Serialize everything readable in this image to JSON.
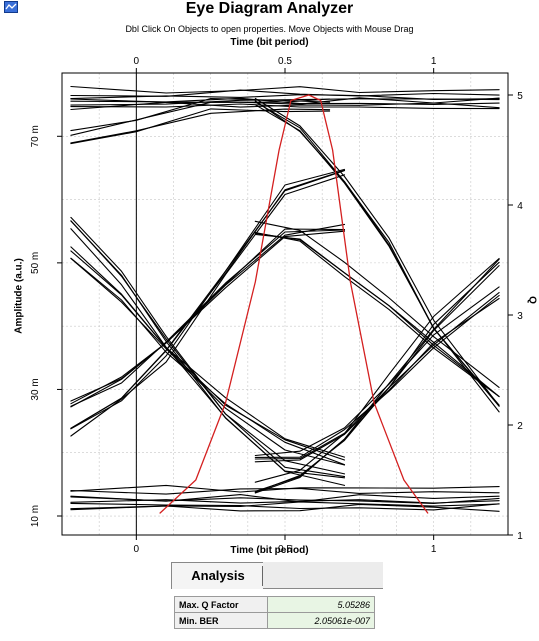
{
  "window": {
    "title": "Eye Diagram Analyzer",
    "hint": "Dbl Click On Objects to open properties.  Move Objects with Mouse Drag"
  },
  "chart_data": {
    "type": "line",
    "title": "Eye Diagram Analyzer",
    "xlabel": "Time (bit period)",
    "ylabel": "Amplitude (a.u.)",
    "y2label": "Q",
    "xlim": [
      -0.25,
      1.25
    ],
    "ylim": [
      7,
      80
    ],
    "y2lim": [
      1,
      5.2
    ],
    "x_ticks": [
      "0",
      "0.5",
      "1"
    ],
    "y_ticks": [
      "10 m",
      "30 m",
      "50 m",
      "70 m"
    ],
    "y2_ticks": [
      "1",
      "2",
      "3",
      "4",
      "5"
    ],
    "grid": true,
    "series": [
      {
        "role": "eye",
        "color": "#000000",
        "x": [
          -0.22,
          0.1,
          0.35,
          0.55,
          0.75,
          1.0,
          1.22
        ],
        "y": [
          76.5,
          76.5,
          76.5,
          76.5,
          76.5,
          76.5,
          76.5
        ]
      },
      {
        "role": "eye",
        "color": "#000000",
        "x": [
          -0.22,
          0.1,
          0.35,
          0.55,
          0.75,
          1.0,
          1.22
        ],
        "y": [
          75,
          75,
          75,
          75,
          75,
          75,
          75
        ]
      },
      {
        "role": "eye",
        "color": "#000000",
        "x": [
          -0.22,
          0.1,
          0.35,
          0.55,
          0.75,
          1.0,
          1.22
        ],
        "y": [
          13.5,
          13.5,
          13.5,
          13.5,
          13.5,
          13.5,
          13.5
        ]
      },
      {
        "role": "eye",
        "color": "#000000",
        "x": [
          -0.22,
          0.1,
          0.35,
          0.55,
          0.75,
          1.0,
          1.22
        ],
        "y": [
          12,
          12,
          12,
          12,
          12,
          12,
          12
        ]
      },
      {
        "role": "eye",
        "color": "#000000",
        "x": [
          -0.22,
          -0.05,
          0.1,
          0.3,
          0.5,
          0.7
        ],
        "y": [
          57,
          48,
          38,
          26,
          18,
          16
        ]
      },
      {
        "role": "eye",
        "color": "#000000",
        "x": [
          -0.22,
          -0.05,
          0.1,
          0.3,
          0.5,
          0.7
        ],
        "y": [
          52,
          45,
          37,
          28,
          22,
          19
        ]
      },
      {
        "role": "eye",
        "color": "#000000",
        "x": [
          -0.22,
          -0.05,
          0.1,
          0.3,
          0.5,
          0.7
        ],
        "y": [
          23,
          28,
          35,
          48,
          61,
          64
        ]
      },
      {
        "role": "eye",
        "color": "#000000",
        "x": [
          -0.22,
          -0.05,
          0.1,
          0.3,
          0.5,
          0.7
        ],
        "y": [
          27,
          31,
          37,
          46,
          54,
          55
        ]
      },
      {
        "role": "eye",
        "color": "#000000",
        "x": [
          0.4,
          0.55,
          0.7,
          0.85,
          1.0,
          1.22
        ],
        "y": [
          75,
          71,
          63,
          53,
          40,
          27
        ]
      },
      {
        "role": "eye",
        "color": "#000000",
        "x": [
          0.4,
          0.55,
          0.7,
          0.85,
          1.0,
          1.22
        ],
        "y": [
          56,
          55,
          49,
          44,
          38,
          30
        ]
      },
      {
        "role": "eye",
        "color": "#000000",
        "x": [
          0.4,
          0.55,
          0.7,
          0.85,
          1.0,
          1.22
        ],
        "y": [
          14,
          16,
          22,
          31,
          40,
          50
        ]
      },
      {
        "role": "eye",
        "color": "#000000",
        "x": [
          0.4,
          0.55,
          0.7,
          0.85,
          1.0,
          1.22
        ],
        "y": [
          20,
          20,
          24,
          31,
          38,
          46
        ]
      },
      {
        "role": "eye",
        "color": "#000000",
        "x": [
          -0.22,
          0.0,
          0.25,
          0.5,
          0.65
        ],
        "y": [
          70,
          72,
          75,
          75,
          75
        ]
      },
      {
        "role": "q-factor",
        "color": "#d42020",
        "axis": "right",
        "x": [
          0.08,
          0.2,
          0.3,
          0.4,
          0.48,
          0.52,
          0.58,
          0.62,
          0.66,
          0.72,
          0.8,
          0.9,
          0.98
        ],
        "y": [
          1.2,
          1.5,
          2.2,
          3.3,
          4.5,
          4.95,
          5.0,
          4.95,
          4.5,
          3.3,
          2.2,
          1.5,
          1.2
        ]
      }
    ]
  },
  "analysis": {
    "tab_label": "Analysis",
    "rows": [
      {
        "label": "Max. Q Factor",
        "value": "5.05286"
      },
      {
        "label": "Min. BER",
        "value": "2.05061e-007"
      }
    ]
  }
}
